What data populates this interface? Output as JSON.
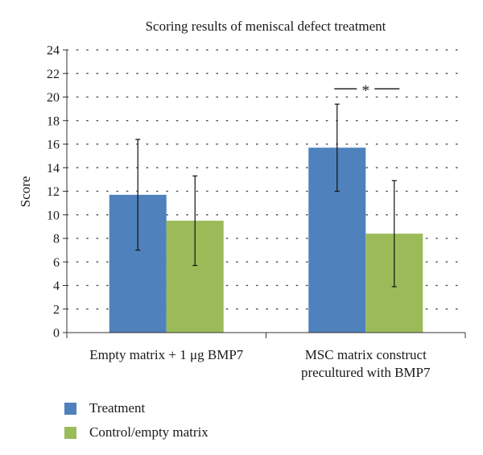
{
  "chart_data": {
    "type": "bar",
    "title": "Scoring results of meniscal defect treatment",
    "ylabel": "Score",
    "xlabel": "",
    "ylim": [
      0,
      24
    ],
    "yticks": [
      0,
      2,
      4,
      6,
      8,
      10,
      12,
      14,
      16,
      18,
      20,
      22,
      24
    ],
    "grid": "dotted-horizontal",
    "categories": [
      {
        "line1": "Empty matrix + 1 μg BMP7",
        "line2": ""
      },
      {
        "line1": "MSC matrix construct",
        "line2": "precultured with BMP7"
      }
    ],
    "series": [
      {
        "name": "Treatment",
        "color": "#4f81bd",
        "values": [
          11.7,
          15.7
        ],
        "error_low": [
          7.0,
          12.0
        ],
        "error_high": [
          16.4,
          19.4
        ]
      },
      {
        "name": "Control/empty matrix",
        "color": "#9bbb59",
        "values": [
          9.5,
          8.4
        ],
        "error_low": [
          5.7,
          3.9
        ],
        "error_high": [
          13.3,
          12.9
        ]
      }
    ],
    "annotations": [
      {
        "text": "*",
        "category_index": 1,
        "y": 20.7
      }
    ],
    "legend_position": "bottom-left"
  }
}
